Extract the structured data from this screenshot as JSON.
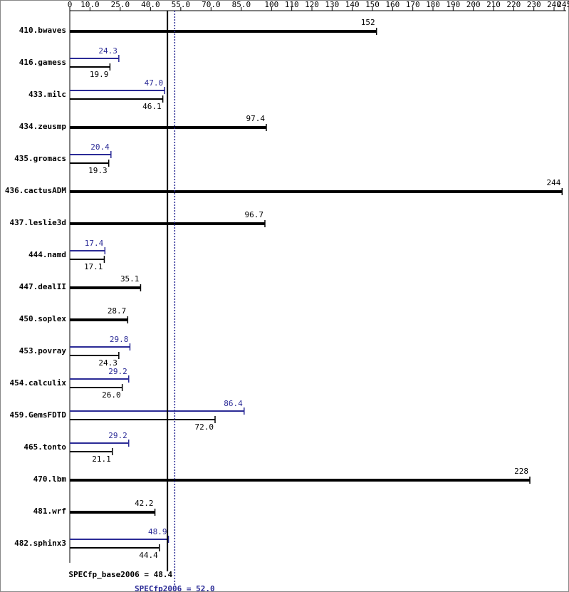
{
  "chart_data": {
    "type": "bar",
    "orientation": "horizontal",
    "categories": [
      "410.bwaves",
      "416.gamess",
      "433.milc",
      "434.zeusmp",
      "435.gromacs",
      "436.cactusADM",
      "437.leslie3d",
      "444.namd",
      "447.dealII",
      "450.soplex",
      "453.povray",
      "454.calculix",
      "459.GemsFDTD",
      "465.tonto",
      "470.lbm",
      "481.wrf",
      "482.sphinx3"
    ],
    "series": [
      {
        "color": "#000000",
        "values": [
          152,
          19.9,
          46.1,
          97.4,
          19.3,
          244,
          96.7,
          17.1,
          35.1,
          28.7,
          24.3,
          26.0,
          72.0,
          21.1,
          228,
          42.2,
          44.4
        ],
        "value_labels": [
          "152",
          "19.9",
          "46.1",
          "97.4",
          "19.3",
          "244",
          "96.7",
          "17.1",
          "35.1",
          "28.7",
          "24.3",
          "26.0",
          "72.0",
          "21.1",
          "228",
          "42.2",
          "44.4"
        ]
      },
      {
        "color": "#2b2b96",
        "values": [
          null,
          24.3,
          47.0,
          null,
          20.4,
          null,
          null,
          17.4,
          null,
          null,
          29.8,
          29.2,
          86.4,
          29.2,
          null,
          null,
          48.9
        ],
        "value_labels": [
          null,
          "24.3",
          "47.0",
          null,
          "20.4",
          null,
          null,
          "17.4",
          null,
          null,
          "29.8",
          "29.2",
          "86.4",
          "29.2",
          null,
          null,
          "48.9"
        ]
      }
    ],
    "xlim": [
      0,
      246
    ],
    "xticks": [
      0,
      {
        "value": 10,
        "label": "10.0"
      },
      {
        "value": 25,
        "label": "25.0"
      },
      {
        "value": 40,
        "label": "40.0"
      },
      {
        "value": 55,
        "label": "55.0"
      },
      {
        "value": 70,
        "label": "70.0"
      },
      {
        "value": 85,
        "label": "85.0"
      },
      100,
      110,
      120,
      130,
      140,
      150,
      160,
      170,
      180,
      190,
      200,
      210,
      220,
      230,
      240,
      245
    ],
    "reference_lines": [
      {
        "value": 48.4,
        "label": "SPECfp_base2006 = 48.4",
        "color": "#000000",
        "dashed": false
      },
      {
        "value": 52.0,
        "label": "SPECfp2006 = 52.0",
        "color": "#2b2b96",
        "dashed": true
      }
    ]
  }
}
